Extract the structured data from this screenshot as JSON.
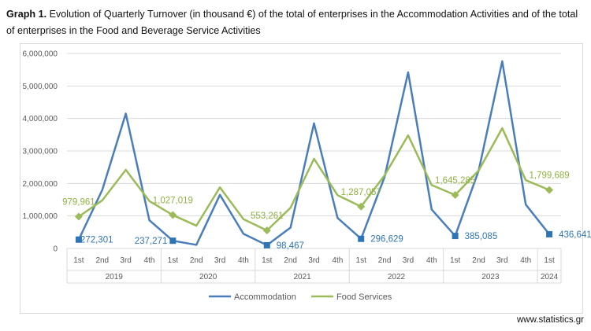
{
  "title": {
    "prefix": "Graph 1.",
    "text": "Evolution of Quarterly Turnover (in thousand €) of the total of enterprises in the Accommodation Activities and of the total of enterprises in the Food and Beverage Service Activities"
  },
  "source": "www.statistics.gr",
  "colors": {
    "accommodation": "#4a7ebb",
    "food": "#9bbb59",
    "grid": "#d9d9d9",
    "label_acc": "#2e75b6",
    "label_food": "#8fb141"
  },
  "chart_data": {
    "type": "line",
    "title": "Evolution of Quarterly Turnover (in thousand €)",
    "ylim": [
      0,
      6000000
    ],
    "yticks": [
      0,
      1000000,
      2000000,
      3000000,
      4000000,
      5000000,
      6000000
    ],
    "ytick_labels": [
      "0",
      "1,000,000",
      "2,000,000",
      "3,000,000",
      "4,000,000",
      "5,000,000",
      "6,000,000"
    ],
    "categories": [
      "2019 1st",
      "2019 2nd",
      "2019 3rd",
      "2019 4th",
      "2020 1st",
      "2020 2nd",
      "2020 3rd",
      "2020 4th",
      "2021 1st",
      "2021 2nd",
      "2021 3rd",
      "2021 4th",
      "2022 1st",
      "2022 2nd",
      "2022 3rd",
      "2022 4th",
      "2023 1st",
      "2023 2nd",
      "2023 3rd",
      "2023 4th",
      "2024 1st"
    ],
    "quarters": [
      "1st",
      "2nd",
      "3rd",
      "4th",
      "1st",
      "2nd",
      "3rd",
      "4th",
      "1st",
      "2nd",
      "3rd",
      "4th",
      "1st",
      "2nd",
      "3rd",
      "4th",
      "1st",
      "2nd",
      "3rd",
      "4th",
      "1st"
    ],
    "years": [
      {
        "label": "2019",
        "count": 4
      },
      {
        "label": "2020",
        "count": 4
      },
      {
        "label": "2021",
        "count": 4
      },
      {
        "label": "2022",
        "count": 4
      },
      {
        "label": "2023",
        "count": 4
      },
      {
        "label": "2024",
        "count": 1
      }
    ],
    "series": [
      {
        "name": "Accommodation",
        "values": [
          272301,
          1800000,
          4150000,
          870000,
          237271,
          110000,
          1650000,
          450000,
          98467,
          640000,
          3850000,
          940000,
          296629,
          2200000,
          5420000,
          1200000,
          385085,
          2400000,
          5760000,
          1350000,
          436641
        ],
        "labeled": [
          {
            "index": 0,
            "text": "272,301"
          },
          {
            "index": 4,
            "text": "237,271"
          },
          {
            "index": 8,
            "text": "98,467"
          },
          {
            "index": 12,
            "text": "296,629"
          },
          {
            "index": 16,
            "text": "385,085"
          },
          {
            "index": 20,
            "text": "436,641"
          }
        ]
      },
      {
        "name": "Food Services",
        "values": [
          979961,
          1480000,
          2420000,
          1460000,
          1027019,
          700000,
          1880000,
          900000,
          553261,
          1250000,
          2760000,
          1640000,
          1287057,
          2250000,
          3480000,
          1950000,
          1645285,
          2400000,
          3700000,
          2100000,
          1799689
        ],
        "labeled": [
          {
            "index": 0,
            "text": "979,961"
          },
          {
            "index": 4,
            "text": "1,027,019"
          },
          {
            "index": 8,
            "text": "553,261"
          },
          {
            "index": 12,
            "text": "1,287,057"
          },
          {
            "index": 16,
            "text": "1,645,285"
          },
          {
            "index": 20,
            "text": "1,799,689"
          }
        ]
      }
    ],
    "legend": [
      "Accommodation",
      "Food Services"
    ],
    "legend_position": "bottom",
    "grid": true
  }
}
